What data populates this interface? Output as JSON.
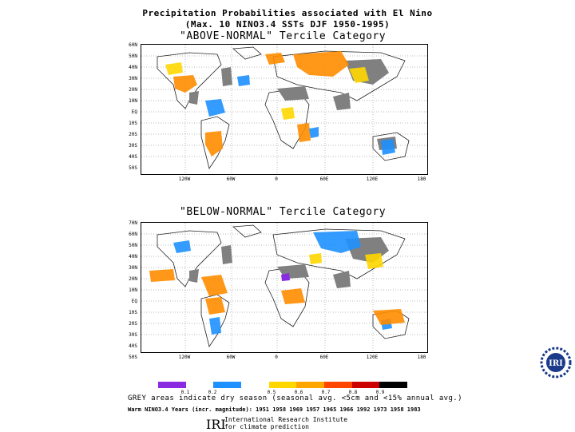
{
  "title": {
    "line1": "Precipitation Probabilities associated with El Nino",
    "line2": "(Max. 10 NINO3.4 SSTs DJF 1950-1995)"
  },
  "panels": [
    {
      "subtitle": "\"ABOVE-NORMAL\" Tercile Category"
    },
    {
      "subtitle": "\"BELOW-NORMAL\" Tercile Category"
    }
  ],
  "lat_labels": [
    "60N",
    "50N",
    "40N",
    "30N",
    "20N",
    "10N",
    "EQ",
    "10S",
    "20S",
    "30S",
    "40S",
    "50S"
  ],
  "lat_labels_top": [
    "70N"
  ],
  "lon_labels": [
    "120W",
    "60W",
    "0",
    "60E",
    "120E",
    "180"
  ],
  "legend": {
    "colors": [
      "#8a2be2",
      "#ffffff",
      "#1e90ff",
      "#ffffff",
      "#ffd700",
      "#ffa500",
      "#ff4500",
      "#cc0000",
      "#000000"
    ],
    "ticks": [
      "0.1",
      "0.2",
      "0.5",
      "0.6",
      "0.7",
      "0.8",
      "0.9"
    ]
  },
  "footer": {
    "grey_note": "GREY areas indicate dry season (seasonal avg. <5cm and <15% annual avg.)",
    "years": "Warm NINO3.4 Years (incr. magnitude): 1951 1958 1969 1957 1965 1966 1992 1973 1958 1983",
    "logo": "IRI",
    "institute_line1": "International Research Institute",
    "institute_line2": "for climate prediction"
  },
  "badge": {
    "text": "IRI"
  }
}
